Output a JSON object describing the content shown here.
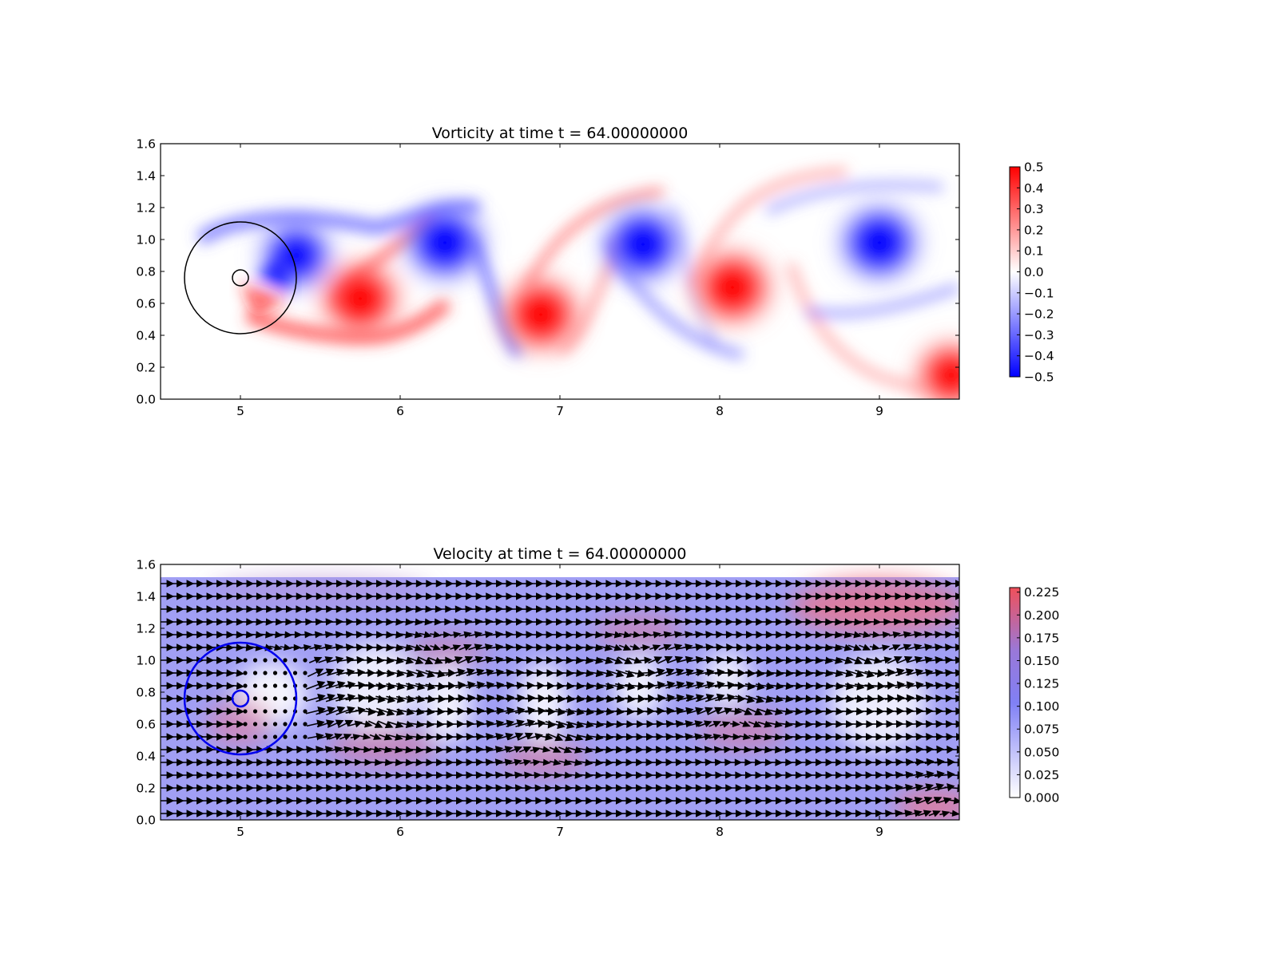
{
  "chart_data": [
    {
      "type": "heatmap",
      "title": "Vorticity at time t =    64.00000000",
      "xlabel": "",
      "ylabel": "",
      "xlim": [
        4.5,
        9.5
      ],
      "ylim": [
        0.0,
        1.6
      ],
      "x_ticks": [
        "5",
        "6",
        "7",
        "8",
        "9"
      ],
      "y_ticks": [
        "0.0",
        "0.2",
        "0.4",
        "0.6",
        "0.8",
        "1.0",
        "1.2",
        "1.4",
        "1.6"
      ],
      "colorbar": {
        "min": -0.5,
        "max": 0.5,
        "ticks": [
          "0.5",
          "0.4",
          "0.3",
          "0.2",
          "0.1",
          "0.0",
          "−0.1",
          "−0.2",
          "−0.3",
          "−0.4",
          "−0.5"
        ],
        "colormap": "bwr"
      },
      "cylinder": {
        "center": [
          5.0,
          0.76
        ],
        "inner_radius": 0.05,
        "outer_radius": 0.35,
        "color": "#000000"
      },
      "vortices": [
        {
          "x": 5.35,
          "y": 0.9,
          "sign": -1,
          "strength": 0.45
        },
        {
          "x": 5.75,
          "y": 0.63,
          "sign": 1,
          "strength": 0.5
        },
        {
          "x": 6.28,
          "y": 0.98,
          "sign": -1,
          "strength": 0.5
        },
        {
          "x": 6.88,
          "y": 0.53,
          "sign": 1,
          "strength": 0.5
        },
        {
          "x": 7.52,
          "y": 0.97,
          "sign": -1,
          "strength": 0.5
        },
        {
          "x": 8.08,
          "y": 0.7,
          "sign": 1,
          "strength": 0.5
        },
        {
          "x": 9.0,
          "y": 0.98,
          "sign": -1,
          "strength": 0.5
        },
        {
          "x": 9.45,
          "y": 0.15,
          "sign": 1,
          "strength": 0.45
        }
      ]
    },
    {
      "type": "heatmap",
      "title": "Velocity at time t =    64.00000000",
      "xlabel": "",
      "ylabel": "",
      "xlim": [
        4.5,
        9.5
      ],
      "ylim": [
        0.0,
        1.6
      ],
      "x_ticks": [
        "5",
        "6",
        "7",
        "8",
        "9"
      ],
      "y_ticks": [
        "0.0",
        "0.2",
        "0.4",
        "0.6",
        "0.8",
        "1.0",
        "1.2",
        "1.4",
        "1.6"
      ],
      "colorbar": {
        "min": 0.0,
        "max": 0.23,
        "ticks": [
          "0.225",
          "0.200",
          "0.175",
          "0.150",
          "0.125",
          "0.100",
          "0.075",
          "0.050",
          "0.025",
          "0.000"
        ],
        "colormap": "white-blue-red"
      },
      "field_ymax": 1.52,
      "cylinder": {
        "center": [
          5.0,
          0.76
        ],
        "inner_radius": 0.05,
        "outer_radius": 0.35,
        "color": "#0000ee"
      },
      "quiver": {
        "x_spacing": 0.0625,
        "y_spacing": 0.08
      }
    }
  ]
}
